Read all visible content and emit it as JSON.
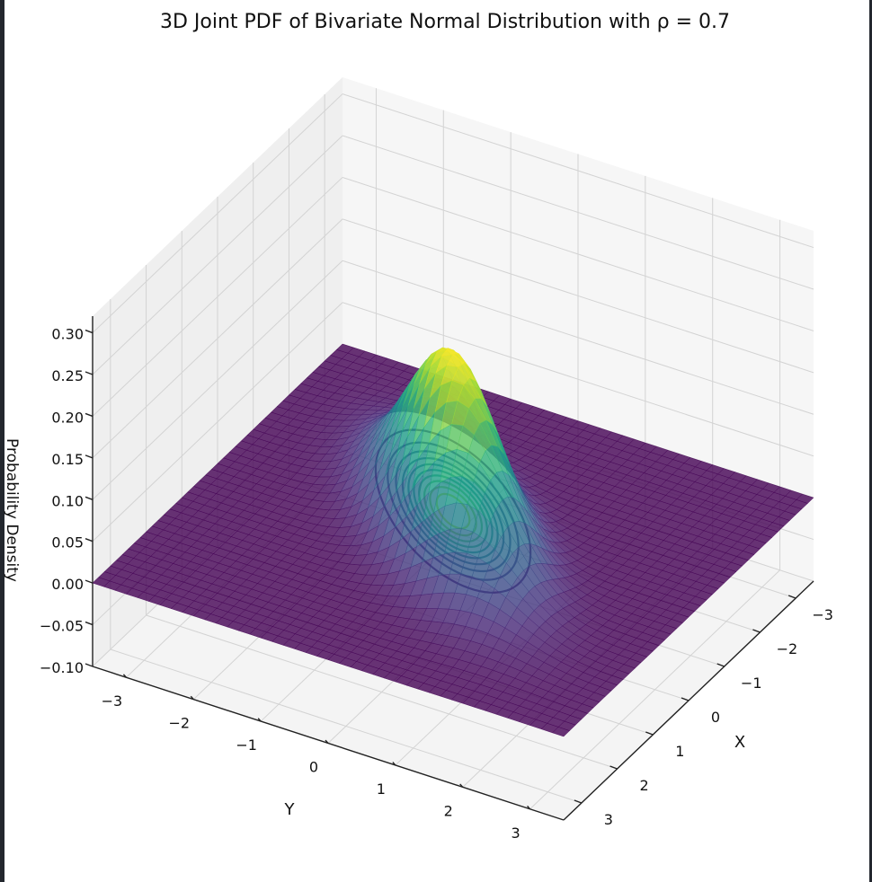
{
  "chart_data": {
    "type": "surface3d",
    "title": "3D Joint PDF of Bivariate Normal Distribution with ρ = 0.7",
    "xlabel": "X",
    "ylabel": "Y",
    "zlabel": "Probability Density",
    "x_ticks": [
      "−3",
      "−2",
      "−1",
      "0",
      "1",
      "2",
      "3"
    ],
    "y_ticks": [
      "−3",
      "−2",
      "−1",
      "0",
      "1",
      "2",
      "3"
    ],
    "z_ticks": [
      "−0.10",
      "−0.05",
      "0.00",
      "0.05",
      "0.10",
      "0.15",
      "0.20",
      "0.25",
      "0.30"
    ],
    "xlim": [
      -3.5,
      3.5
    ],
    "ylim": [
      -3.5,
      3.5
    ],
    "zlim": [
      -0.1,
      0.32
    ],
    "rho": 0.7,
    "mean": [
      0,
      0
    ],
    "peak_density": 0.223,
    "colormap": "viridis",
    "surface_alpha": 0.8,
    "contour_offset_z": 0,
    "contour_levels": [
      0.02,
      0.04,
      0.06,
      0.08,
      0.1,
      0.12,
      0.14,
      0.16,
      0.18,
      0.2
    ],
    "floor_plane_z": 0
  }
}
